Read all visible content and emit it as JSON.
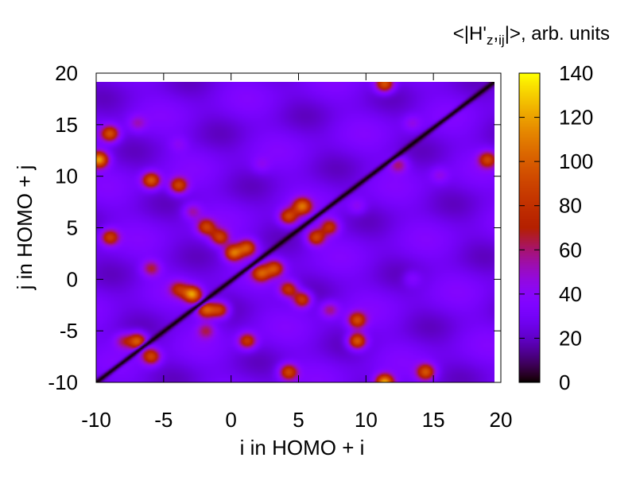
{
  "chart_data": {
    "type": "heatmap",
    "title": "",
    "xlabel": "i in HOMO + i",
    "ylabel": "j in HOMO + j",
    "colorbar_label_parts": [
      "<|H'",
      "z",
      ",",
      "ij",
      "|>, arb. units"
    ],
    "xlim": [
      -10,
      20
    ],
    "ylim": [
      -10,
      20
    ],
    "data_extent": [
      -10,
      19
    ],
    "xticks": [
      -10,
      -5,
      0,
      5,
      10,
      15,
      20
    ],
    "xtick_labels": [
      "-10",
      "-5",
      "0",
      "5",
      "10",
      "15",
      "20"
    ],
    "yticks": [
      -10,
      -5,
      0,
      5,
      10,
      15,
      20
    ],
    "ytick_labels": [
      "-10",
      "-5",
      "0",
      "5",
      "10",
      "15",
      "20"
    ],
    "colorbar_range": [
      0,
      140
    ],
    "colorbar_ticks": [
      0,
      20,
      40,
      60,
      80,
      100,
      120,
      140
    ],
    "colorbar_tick_labels": [
      "0",
      "20",
      "40",
      "60",
      "80",
      "100",
      "120",
      "140"
    ],
    "palette": "gnuplot-pm3d",
    "background_level": 28,
    "diagonal_level": 0,
    "peaks": [
      {
        "x": -9.8,
        "y": 11.5,
        "v": 120
      },
      {
        "x": -9,
        "y": 14,
        "v": 95
      },
      {
        "x": -9,
        "y": 4,
        "v": 85
      },
      {
        "x": -6,
        "y": 9.5,
        "v": 100
      },
      {
        "x": -4,
        "y": 9,
        "v": 90
      },
      {
        "x": -3,
        "y": 6.5,
        "v": 55
      },
      {
        "x": -2,
        "y": 5,
        "v": 85
      },
      {
        "x": -1,
        "y": 4,
        "v": 85
      },
      {
        "x": 0,
        "y": 2.5,
        "v": 105
      },
      {
        "x": 1,
        "y": 3,
        "v": 95
      },
      {
        "x": 2,
        "y": 0.5,
        "v": 90
      },
      {
        "x": 3,
        "y": 1,
        "v": 90
      },
      {
        "x": 5,
        "y": 7,
        "v": 100
      },
      {
        "x": 4,
        "y": 6,
        "v": 90
      },
      {
        "x": 6,
        "y": 4,
        "v": 90
      },
      {
        "x": 7,
        "y": 5,
        "v": 80
      },
      {
        "x": -6,
        "y": 1,
        "v": 65
      },
      {
        "x": -3,
        "y": -1.5,
        "v": 115
      },
      {
        "x": -4,
        "y": -1,
        "v": 70
      },
      {
        "x": -2,
        "y": -3,
        "v": 100
      },
      {
        "x": -1,
        "y": -3,
        "v": 90
      },
      {
        "x": -2,
        "y": -5,
        "v": 60
      },
      {
        "x": 1,
        "y": -6,
        "v": 85
      },
      {
        "x": 4,
        "y": -1,
        "v": 85
      },
      {
        "x": 5,
        "y": -2,
        "v": 90
      },
      {
        "x": 7,
        "y": -3,
        "v": 60
      },
      {
        "x": 9,
        "y": -4,
        "v": 90
      },
      {
        "x": 9,
        "y": -6,
        "v": 105
      },
      {
        "x": -7,
        "y": -6,
        "v": 100
      },
      {
        "x": -6,
        "y": -7.5,
        "v": 90
      },
      {
        "x": -8,
        "y": -6,
        "v": 60
      },
      {
        "x": 4,
        "y": -9,
        "v": 90
      },
      {
        "x": 11,
        "y": -10,
        "v": 125
      },
      {
        "x": 14,
        "y": -9,
        "v": 95
      },
      {
        "x": 11,
        "y": 18.8,
        "v": 100
      },
      {
        "x": 18.5,
        "y": 11.5,
        "v": 85
      },
      {
        "x": 12,
        "y": 11,
        "v": 60
      },
      {
        "x": -7,
        "y": 15,
        "v": 50
      },
      {
        "x": 13,
        "y": 15,
        "v": 45
      },
      {
        "x": 15,
        "y": 10,
        "v": 45
      },
      {
        "x": 9,
        "y": 7,
        "v": 45
      },
      {
        "x": 13,
        "y": 0,
        "v": 42
      },
      {
        "x": 2,
        "y": 11,
        "v": 40
      },
      {
        "x": -4,
        "y": 13,
        "v": 40
      }
    ]
  }
}
